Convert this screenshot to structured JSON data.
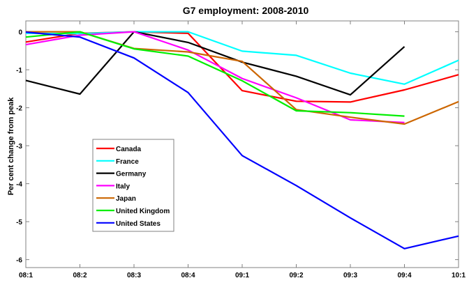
{
  "chart_data": {
    "type": "line",
    "title": "G7 employment: 2008-2010",
    "xlabel": "",
    "ylabel": "Per cent change from peak",
    "x": [
      "08:1",
      "08:2",
      "08:3",
      "08:4",
      "09:1",
      "09:2",
      "09:3",
      "09:4",
      "10:1"
    ],
    "ylim": [
      -6.2,
      0.28
    ],
    "yticks": [
      0,
      -1,
      -2,
      -3,
      -4,
      -5,
      -6
    ],
    "ytick_labels": [
      "0",
      "-1",
      "-2",
      "-3",
      "-4",
      "-5",
      "-6"
    ],
    "grid": false,
    "legend_position": "center-left",
    "series": [
      {
        "name": "Canada",
        "color": "#ff0000",
        "values": [
          -0.27,
          -0.04,
          0,
          -0.04,
          -1.55,
          -1.83,
          -1.85,
          -1.53,
          -1.13
        ]
      },
      {
        "name": "France",
        "color": "#00ffff",
        "values": [
          -0.04,
          -0.05,
          0,
          0,
          -0.51,
          -0.62,
          -1.09,
          -1.38,
          -0.75
        ]
      },
      {
        "name": "Germany",
        "color": "#000000",
        "values": [
          -1.28,
          -1.64,
          0,
          -0.28,
          -0.8,
          -1.17,
          -1.66,
          -0.39,
          null
        ]
      },
      {
        "name": "Italy",
        "color": "#ff00ff",
        "values": [
          -0.34,
          -0.09,
          0,
          -0.48,
          -1.23,
          -1.74,
          -2.32,
          -2.39,
          null
        ]
      },
      {
        "name": "Japan",
        "color": "#cc6600",
        "values": [
          0,
          0,
          -0.44,
          -0.53,
          -0.78,
          -2.05,
          -2.25,
          -2.43,
          -1.84
        ]
      },
      {
        "name": "United Kingdom",
        "color": "#00ee00",
        "values": [
          -0.14,
          0,
          -0.45,
          -0.64,
          -1.29,
          -2.08,
          -2.13,
          -2.22,
          null
        ]
      },
      {
        "name": "United States",
        "color": "#0000ff",
        "values": [
          -0.01,
          -0.14,
          -0.69,
          -1.6,
          -3.26,
          -4.05,
          -4.9,
          -5.71,
          -5.38
        ]
      }
    ]
  }
}
